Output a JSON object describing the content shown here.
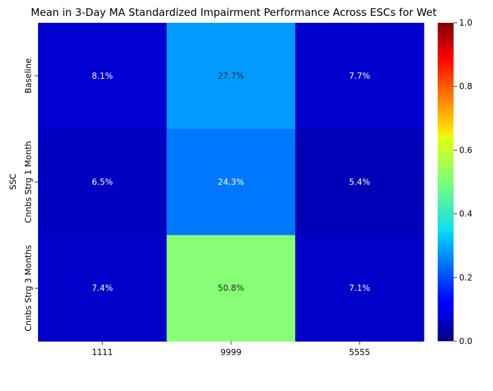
{
  "chart_data": {
    "type": "heatmap",
    "title": "Mean in 3-Day MA Standardized Impairment Performance Across ESCs for Wet",
    "xlabel": "",
    "ylabel": "SSC",
    "x_categories": [
      "1111",
      "9999",
      "5555"
    ],
    "y_categories": [
      "Baseline",
      "Cnnbs Strg 1 Month",
      "Cnnbs Strg 3 Months"
    ],
    "values": [
      [
        0.081,
        0.277,
        0.077
      ],
      [
        0.065,
        0.243,
        0.054
      ],
      [
        0.074,
        0.508,
        0.071
      ]
    ],
    "cell_labels": [
      [
        "8.1%",
        "27.7%",
        "7.7%"
      ],
      [
        "6.5%",
        "24.3%",
        "5.4%"
      ],
      [
        "7.4%",
        "50.8%",
        "7.1%"
      ]
    ],
    "colormap": "jet",
    "vmin": 0,
    "vmax": 1,
    "colorbar_ticks": [
      0,
      0.2,
      0.4,
      0.6,
      0.8,
      1.0
    ],
    "colorbar_tick_labels": [
      "0.0",
      "0.2",
      "0.4",
      "0.6",
      "0.8",
      "1.0"
    ]
  }
}
